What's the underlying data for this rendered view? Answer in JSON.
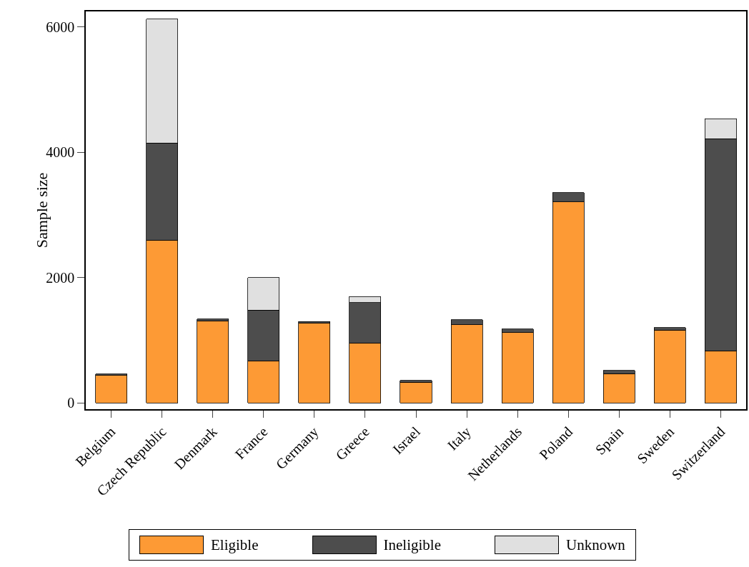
{
  "chart_data": {
    "type": "bar",
    "stacked": true,
    "ylabel": "Sample size",
    "categories": [
      "Belgium",
      "Czech Republic",
      "Denmark",
      "France",
      "Germany",
      "Greece",
      "Israel",
      "Italy",
      "Netherlands",
      "Poland",
      "Spain",
      "Sweden",
      "Switzerland"
    ],
    "series": [
      {
        "name": "Eligible",
        "color": "#fd9a35",
        "values": [
          440,
          2600,
          1310,
          670,
          1270,
          960,
          330,
          1250,
          1120,
          3210,
          470,
          1160,
          830
        ]
      },
      {
        "name": "Ineligible",
        "color": "#4d4d4d",
        "values": [
          20,
          1550,
          30,
          810,
          30,
          640,
          30,
          80,
          60,
          150,
          50,
          40,
          3390
        ]
      },
      {
        "name": "Unknown",
        "color": "#e0e0e0",
        "values": [
          null,
          1980,
          null,
          520,
          null,
          100,
          null,
          null,
          null,
          null,
          null,
          null,
          320
        ]
      }
    ],
    "ylim": [
      -100,
      6250
    ],
    "yticks": [
      0,
      2000,
      4000,
      6000
    ],
    "grid": false,
    "legend": "bottom"
  }
}
